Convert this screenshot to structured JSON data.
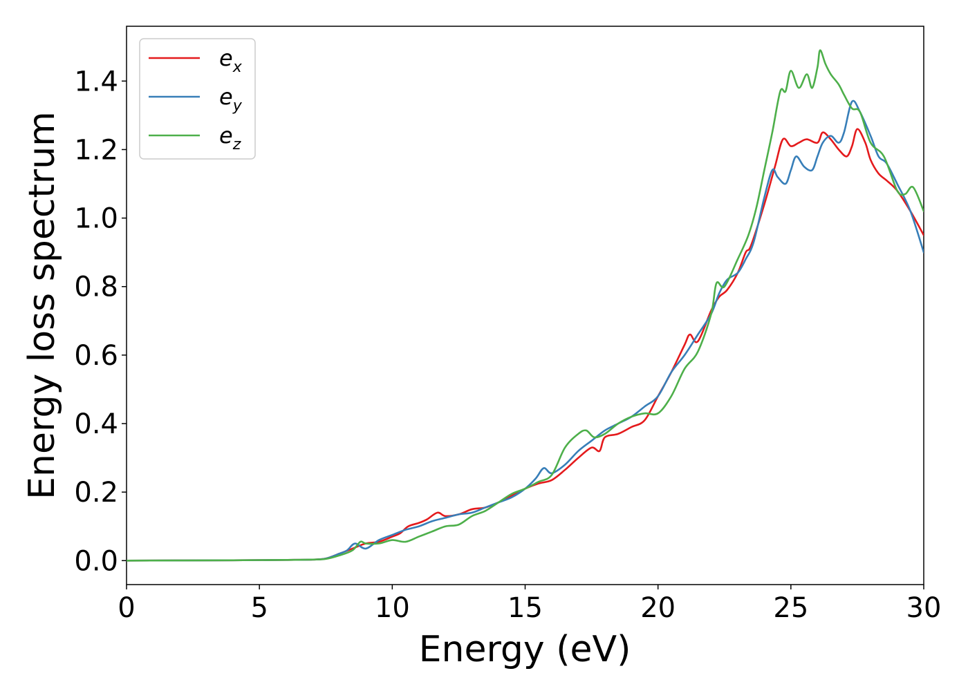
{
  "chart_data": {
    "type": "line",
    "title": "",
    "xlabel": "Energy (eV)",
    "ylabel": "Energy loss spectrum",
    "xlim": [
      0,
      30
    ],
    "ylim": [
      -0.07,
      1.56
    ],
    "xticks": [
      0,
      5,
      10,
      15,
      20,
      25,
      30
    ],
    "yticks": [
      0.0,
      0.2,
      0.4,
      0.6,
      0.8,
      1.0,
      1.2,
      1.4
    ],
    "xtick_labels": [
      "0",
      "5",
      "10",
      "15",
      "20",
      "25",
      "30"
    ],
    "ytick_labels": [
      "0.0",
      "0.2",
      "0.4",
      "0.6",
      "0.8",
      "1.0",
      "1.2",
      "1.4"
    ],
    "grid": false,
    "legend_position": "top-left",
    "series": [
      {
        "name": "e_x",
        "label_main": "e",
        "label_sub": "x",
        "color": "#e41a1c",
        "points": [
          [
            0,
            0
          ],
          [
            4,
            0.001
          ],
          [
            6,
            0.002
          ],
          [
            7,
            0.003
          ],
          [
            7.5,
            0.006
          ],
          [
            8,
            0.02
          ],
          [
            8.5,
            0.035
          ],
          [
            9,
            0.05
          ],
          [
            9.5,
            0.055
          ],
          [
            10,
            0.07
          ],
          [
            10.3,
            0.08
          ],
          [
            10.6,
            0.1
          ],
          [
            11,
            0.11
          ],
          [
            11.3,
            0.12
          ],
          [
            11.7,
            0.14
          ],
          [
            12,
            0.13
          ],
          [
            12.5,
            0.135
          ],
          [
            13,
            0.15
          ],
          [
            13.5,
            0.155
          ],
          [
            14,
            0.17
          ],
          [
            14.5,
            0.19
          ],
          [
            15,
            0.21
          ],
          [
            15.5,
            0.225
          ],
          [
            16,
            0.235
          ],
          [
            16.5,
            0.265
          ],
          [
            17,
            0.3
          ],
          [
            17.5,
            0.33
          ],
          [
            17.8,
            0.32
          ],
          [
            18,
            0.36
          ],
          [
            18.5,
            0.37
          ],
          [
            19,
            0.39
          ],
          [
            19.5,
            0.41
          ],
          [
            20,
            0.48
          ],
          [
            20.5,
            0.55
          ],
          [
            21,
            0.63
          ],
          [
            21.2,
            0.66
          ],
          [
            21.5,
            0.64
          ],
          [
            22,
            0.73
          ],
          [
            22.3,
            0.77
          ],
          [
            22.6,
            0.79
          ],
          [
            23,
            0.84
          ],
          [
            23.3,
            0.9
          ],
          [
            23.5,
            0.92
          ],
          [
            24,
            1.04
          ],
          [
            24.4,
            1.15
          ],
          [
            24.7,
            1.23
          ],
          [
            25,
            1.21
          ],
          [
            25.3,
            1.22
          ],
          [
            25.6,
            1.23
          ],
          [
            26,
            1.22
          ],
          [
            26.2,
            1.25
          ],
          [
            26.5,
            1.23
          ],
          [
            26.8,
            1.2
          ],
          [
            27.1,
            1.18
          ],
          [
            27.3,
            1.21
          ],
          [
            27.5,
            1.26
          ],
          [
            27.8,
            1.22
          ],
          [
            28,
            1.17
          ],
          [
            28.3,
            1.13
          ],
          [
            28.6,
            1.11
          ],
          [
            29,
            1.08
          ],
          [
            29.5,
            1.02
          ],
          [
            30,
            0.95
          ]
        ]
      },
      {
        "name": "e_y",
        "label_main": "e",
        "label_sub": "y",
        "color": "#377eb8",
        "points": [
          [
            0,
            0
          ],
          [
            4,
            0.001
          ],
          [
            6,
            0.002
          ],
          [
            7,
            0.003
          ],
          [
            7.5,
            0.006
          ],
          [
            8,
            0.02
          ],
          [
            8.3,
            0.03
          ],
          [
            8.6,
            0.05
          ],
          [
            9,
            0.035
          ],
          [
            9.5,
            0.06
          ],
          [
            10,
            0.075
          ],
          [
            10.5,
            0.09
          ],
          [
            11,
            0.1
          ],
          [
            11.5,
            0.115
          ],
          [
            12,
            0.125
          ],
          [
            12.5,
            0.135
          ],
          [
            13,
            0.14
          ],
          [
            13.5,
            0.155
          ],
          [
            14,
            0.17
          ],
          [
            14.5,
            0.185
          ],
          [
            15,
            0.21
          ],
          [
            15.4,
            0.24
          ],
          [
            15.7,
            0.27
          ],
          [
            16,
            0.255
          ],
          [
            16.5,
            0.28
          ],
          [
            17,
            0.32
          ],
          [
            17.5,
            0.35
          ],
          [
            18,
            0.38
          ],
          [
            18.5,
            0.4
          ],
          [
            19,
            0.42
          ],
          [
            19.5,
            0.45
          ],
          [
            20,
            0.48
          ],
          [
            20.5,
            0.55
          ],
          [
            21,
            0.6
          ],
          [
            21.5,
            0.66
          ],
          [
            22,
            0.72
          ],
          [
            22.3,
            0.78
          ],
          [
            22.6,
            0.82
          ],
          [
            23,
            0.84
          ],
          [
            23.3,
            0.88
          ],
          [
            23.6,
            0.93
          ],
          [
            24,
            1.06
          ],
          [
            24.3,
            1.14
          ],
          [
            24.5,
            1.12
          ],
          [
            24.8,
            1.1
          ],
          [
            25,
            1.14
          ],
          [
            25.2,
            1.18
          ],
          [
            25.5,
            1.15
          ],
          [
            25.8,
            1.14
          ],
          [
            26,
            1.18
          ],
          [
            26.2,
            1.22
          ],
          [
            26.5,
            1.24
          ],
          [
            26.8,
            1.22
          ],
          [
            27,
            1.25
          ],
          [
            27.3,
            1.34
          ],
          [
            27.6,
            1.31
          ],
          [
            28,
            1.24
          ],
          [
            28.3,
            1.18
          ],
          [
            28.6,
            1.16
          ],
          [
            29,
            1.1
          ],
          [
            29.5,
            1.02
          ],
          [
            30,
            0.9
          ]
        ]
      },
      {
        "name": "e_z",
        "label_main": "e",
        "label_sub": "z",
        "color": "#4daf4a",
        "points": [
          [
            0,
            0
          ],
          [
            4,
            0.001
          ],
          [
            6,
            0.002
          ],
          [
            7,
            0.003
          ],
          [
            7.5,
            0.005
          ],
          [
            8,
            0.015
          ],
          [
            8.5,
            0.03
          ],
          [
            8.8,
            0.055
          ],
          [
            9,
            0.05
          ],
          [
            9.5,
            0.05
          ],
          [
            10,
            0.06
          ],
          [
            10.5,
            0.055
          ],
          [
            11,
            0.07
          ],
          [
            11.5,
            0.085
          ],
          [
            12,
            0.1
          ],
          [
            12.5,
            0.105
          ],
          [
            13,
            0.13
          ],
          [
            13.5,
            0.145
          ],
          [
            14,
            0.17
          ],
          [
            14.5,
            0.195
          ],
          [
            15,
            0.21
          ],
          [
            15.5,
            0.23
          ],
          [
            16,
            0.25
          ],
          [
            16.5,
            0.33
          ],
          [
            17,
            0.37
          ],
          [
            17.3,
            0.38
          ],
          [
            17.6,
            0.36
          ],
          [
            18,
            0.37
          ],
          [
            18.5,
            0.4
          ],
          [
            19,
            0.42
          ],
          [
            19.5,
            0.43
          ],
          [
            20,
            0.43
          ],
          [
            20.5,
            0.48
          ],
          [
            21,
            0.56
          ],
          [
            21.5,
            0.61
          ],
          [
            22,
            0.72
          ],
          [
            22.2,
            0.81
          ],
          [
            22.5,
            0.8
          ],
          [
            23,
            0.88
          ],
          [
            23.4,
            0.95
          ],
          [
            23.7,
            1.03
          ],
          [
            24,
            1.14
          ],
          [
            24.3,
            1.25
          ],
          [
            24.6,
            1.37
          ],
          [
            24.8,
            1.37
          ],
          [
            25,
            1.43
          ],
          [
            25.3,
            1.38
          ],
          [
            25.6,
            1.42
          ],
          [
            25.8,
            1.38
          ],
          [
            26,
            1.44
          ],
          [
            26.1,
            1.49
          ],
          [
            26.3,
            1.45
          ],
          [
            26.5,
            1.42
          ],
          [
            26.8,
            1.39
          ],
          [
            27,
            1.36
          ],
          [
            27.3,
            1.32
          ],
          [
            27.6,
            1.31
          ],
          [
            28,
            1.22
          ],
          [
            28.5,
            1.18
          ],
          [
            29,
            1.08
          ],
          [
            29.3,
            1.07
          ],
          [
            29.6,
            1.09
          ],
          [
            30,
            1.02
          ]
        ]
      }
    ]
  }
}
